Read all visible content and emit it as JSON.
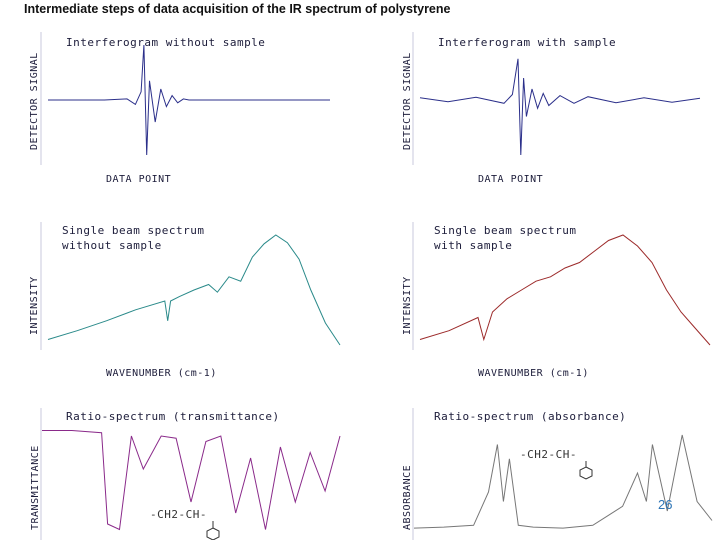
{
  "page": {
    "title": "Intermediate steps of data acquisition of the IR spectrum of polystyrene",
    "page_number": "26"
  },
  "panels": [
    {
      "label_lines": [
        "Interferogram without sample"
      ],
      "xlabel": "DATA POINT",
      "ylabel": "DETECTOR SIGNAL"
    },
    {
      "label_lines": [
        "Interferogram with sample"
      ],
      "xlabel": "DATA POINT",
      "ylabel": "DETECTOR SIGNAL"
    },
    {
      "label_lines": [
        "Single beam spectrum",
        "without sample"
      ],
      "xlabel": "WAVENUMBER (cm-1)",
      "ylabel": "INTENSITY"
    },
    {
      "label_lines": [
        "Single beam spectrum",
        "with sample"
      ],
      "xlabel": "WAVENUMBER (cm-1)",
      "ylabel": "INTENSITY"
    },
    {
      "label_lines": [
        "Ratio-spectrum (transmittance)"
      ],
      "xlabel": "",
      "ylabel": "TRANSMITTANCE"
    },
    {
      "label_lines": [
        "Ratio-spectrum (absorbance)"
      ],
      "xlabel": "",
      "ylabel": "ABSORBANCE"
    }
  ],
  "structure_label": "-CH2-CH-",
  "chart_data": [
    {
      "type": "line",
      "color": "#2b2f8a",
      "series": [
        {
          "x": [
            0,
            10,
            20,
            28,
            31,
            33,
            34,
            35,
            36,
            38,
            40,
            42,
            44,
            46,
            48,
            50,
            60,
            70,
            80,
            90,
            100
          ],
          "y": [
            0,
            0,
            0,
            0.02,
            -0.08,
            0.15,
            1.0,
            -1.0,
            0.35,
            -0.4,
            0.2,
            -0.12,
            0.08,
            -0.05,
            0.02,
            0,
            0,
            0,
            0,
            0,
            0
          ]
        }
      ]
    },
    {
      "type": "line",
      "color": "#2b2f8a",
      "series": [
        {
          "x": [
            0,
            10,
            20,
            30,
            33,
            35,
            36,
            37,
            38,
            40,
            42,
            44,
            46,
            50,
            55,
            60,
            70,
            80,
            90,
            100
          ],
          "y": [
            0.04,
            -0.03,
            0.05,
            -0.06,
            0.1,
            0.75,
            -1.0,
            0.4,
            -0.3,
            0.2,
            -0.15,
            0.12,
            -0.1,
            0.08,
            -0.06,
            0.06,
            -0.05,
            0.04,
            -0.04,
            0.03
          ]
        }
      ]
    },
    {
      "type": "line",
      "color": "#2a8a8a",
      "series": [
        {
          "x": [
            0,
            10,
            20,
            30,
            40,
            41,
            42,
            45,
            50,
            55,
            58,
            62,
            66,
            70,
            74,
            78,
            82,
            86,
            90,
            95,
            100
          ],
          "y": [
            0.05,
            0.13,
            0.22,
            0.32,
            0.4,
            0.22,
            0.4,
            0.44,
            0.5,
            0.55,
            0.48,
            0.62,
            0.58,
            0.8,
            0.92,
            1.0,
            0.93,
            0.78,
            0.5,
            0.2,
            0.0
          ]
        }
      ]
    },
    {
      "type": "line",
      "color": "#9c2a2a",
      "series": [
        {
          "x": [
            0,
            10,
            20,
            22,
            25,
            30,
            35,
            40,
            45,
            50,
            55,
            60,
            65,
            70,
            75,
            80,
            85,
            90,
            95,
            100
          ],
          "y": [
            0.05,
            0.13,
            0.25,
            0.05,
            0.3,
            0.42,
            0.5,
            0.58,
            0.62,
            0.7,
            0.75,
            0.85,
            0.95,
            1.0,
            0.9,
            0.75,
            0.5,
            0.3,
            0.15,
            0.0
          ]
        }
      ]
    },
    {
      "type": "line",
      "color": "#8a2a8a",
      "series": [
        {
          "x": [
            0,
            10,
            20,
            22,
            26,
            30,
            34,
            40,
            45,
            50,
            55,
            60,
            65,
            70,
            75,
            80,
            85,
            90,
            95,
            100
          ],
          "y": [
            0.95,
            0.95,
            0.93,
            0.1,
            0.05,
            0.9,
            0.6,
            0.9,
            0.88,
            0.3,
            0.85,
            0.9,
            0.2,
            0.7,
            0.05,
            0.8,
            0.3,
            0.75,
            0.4,
            0.9
          ]
        }
      ]
    },
    {
      "type": "line",
      "color": "#777777",
      "series": [
        {
          "x": [
            0,
            10,
            20,
            25,
            28,
            30,
            32,
            35,
            40,
            50,
            60,
            65,
            70,
            75,
            78,
            80,
            85,
            90,
            95,
            100
          ],
          "y": [
            0.02,
            0.03,
            0.05,
            0.4,
            0.9,
            0.3,
            0.75,
            0.05,
            0.03,
            0.02,
            0.05,
            0.15,
            0.25,
            0.6,
            0.3,
            0.9,
            0.2,
            1.0,
            0.3,
            0.1
          ]
        }
      ]
    }
  ]
}
